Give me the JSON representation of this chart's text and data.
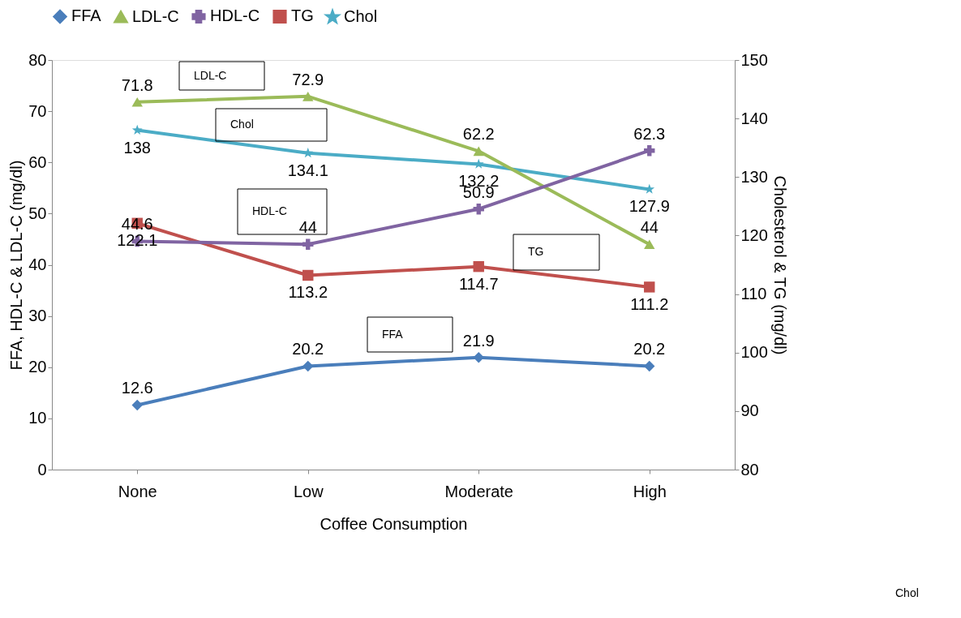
{
  "chart_data": {
    "type": "line",
    "xlabel": "Coffee Consumption",
    "ylabel": "FFA, HDL-C & LDL-C (mg/dl)",
    "y2label": "Cholesterol & TG (mg/dl)",
    "categories": [
      "None",
      "Low",
      "Moderate",
      "High"
    ],
    "series": [
      {
        "name": "FFA",
        "color": "#4a7ebb",
        "marker": "diamond",
        "values": [
          12.6,
          20.2,
          21.9,
          20.2
        ]
      },
      {
        "name": "LDL-C",
        "color": "#9bbb59",
        "marker": "triangle",
        "values": [
          71.8,
          72.9,
          62.2,
          44
        ]
      },
      {
        "name": "HDL-C",
        "color": "#8064a2",
        "marker": "cross",
        "values": [
          44.6,
          44,
          50.9,
          62.3
        ]
      },
      {
        "name": "TG",
        "color": "#c0504d",
        "marker": "square",
        "axis": "y2",
        "values": [
          122.1,
          113.2,
          114.7,
          111.2
        ]
      },
      {
        "name": "Chol",
        "color": "#4bacc6",
        "marker": "star",
        "axis": "y2",
        "values": [
          138,
          134.1,
          132.2,
          127.9
        ]
      }
    ],
    "ylim": [
      0,
      80
    ],
    "yticks": [
      0,
      10,
      20,
      30,
      40,
      50,
      60,
      70,
      80
    ],
    "y2lim": [
      80,
      150
    ],
    "y2ticks": [
      80,
      90,
      100,
      110,
      120,
      130,
      140,
      150
    ],
    "annotations": [
      "LDL-C",
      "Chol",
      "HDL-C",
      "TG",
      "FFA",
      "Chol"
    ],
    "data_labels": true,
    "legend": "top",
    "grid": false,
    "line_style": "solid"
  }
}
